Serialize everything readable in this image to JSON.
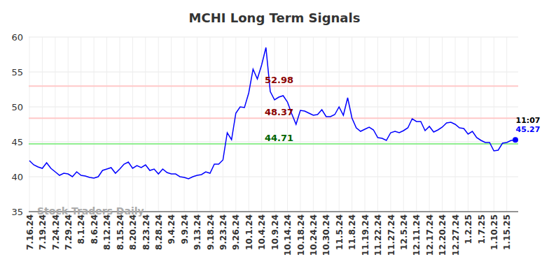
{
  "chart_data": {
    "type": "line",
    "title": "MCHI Long Term Signals",
    "watermark": "Stock Traders Daily",
    "time_label": "11:07",
    "color": "#0000ff",
    "grid": true,
    "ylim": [
      35,
      60
    ],
    "yticks": [
      35,
      40,
      45,
      50,
      55,
      60
    ],
    "levels": [
      {
        "value": 52.98,
        "color": "#8b0000"
      },
      {
        "value": 48.37,
        "color": "#8b0000"
      },
      {
        "value": 44.71,
        "color": "#006400"
      }
    ],
    "categories": [
      "7.16.24",
      null,
      null,
      "7.19.24",
      null,
      null,
      "7.24.24",
      null,
      null,
      "7.29.24",
      null,
      null,
      "8.1.24",
      null,
      null,
      "8.6.24",
      null,
      null,
      "8.12.24",
      null,
      null,
      "8.15.24",
      null,
      null,
      "8.20.24",
      null,
      null,
      "8.23.24",
      null,
      null,
      "8.28.24",
      null,
      null,
      "9.4.24",
      null,
      null,
      "9.9.24",
      null,
      null,
      "9.13.24",
      null,
      null,
      "9.18.24",
      null,
      null,
      "9.23.24",
      null,
      null,
      "9.26.24",
      null,
      null,
      "10.1.24",
      null,
      null,
      "10.4.24",
      null,
      null,
      "10.9.24",
      null,
      null,
      "10.14.24",
      null,
      null,
      "10.18.24",
      null,
      null,
      "10.24.24",
      null,
      null,
      "10.30.24",
      null,
      null,
      "11.5.24",
      null,
      null,
      "11.8.24",
      null,
      null,
      "11.19.24",
      null,
      null,
      "11.22.24",
      null,
      null,
      "11.27.24",
      null,
      null,
      "12.5.24",
      null,
      null,
      "12.11.24",
      null,
      null,
      "12.17.24",
      null,
      null,
      "12.20.24",
      null,
      null,
      "12.27.24",
      null,
      null,
      "1.2.25",
      null,
      null,
      "1.7.25",
      null,
      null,
      "1.10.25",
      null,
      null,
      "1.15.25",
      null,
      null
    ],
    "values": [
      42.3,
      41.7,
      41.4,
      41.2,
      42.0,
      41.2,
      40.7,
      40.2,
      40.5,
      40.4,
      40.0,
      40.7,
      40.2,
      40.1,
      39.9,
      39.8,
      40.0,
      40.9,
      41.1,
      41.3,
      40.5,
      41.1,
      41.8,
      42.1,
      41.2,
      41.6,
      41.3,
      41.7,
      40.9,
      41.1,
      40.4,
      41.1,
      40.6,
      40.4,
      40.4,
      40.0,
      39.9,
      39.7,
      40.0,
      40.2,
      40.3,
      40.7,
      40.5,
      41.8,
      41.8,
      42.4,
      46.3,
      45.3,
      49.1,
      50.0,
      49.9,
      52.0,
      55.4,
      54.0,
      56.0,
      58.5,
      52.2,
      51.0,
      51.4,
      51.6,
      50.7,
      49.0,
      47.5,
      49.5,
      49.4,
      49.1,
      48.8,
      48.9,
      49.6,
      48.6,
      48.6,
      48.9,
      50.0,
      48.8,
      51.3,
      48.4,
      47.0,
      46.5,
      46.8,
      47.1,
      46.7,
      45.6,
      45.5,
      45.2,
      46.3,
      46.5,
      46.3,
      46.6,
      47.0,
      48.3,
      47.9,
      47.9,
      46.6,
      47.2,
      46.4,
      46.7,
      47.1,
      47.7,
      47.8,
      47.5,
      47.0,
      46.9,
      46.1,
      46.5,
      45.6,
      45.2,
      44.9,
      44.9,
      43.7,
      43.8,
      44.8,
      44.9,
      45.2,
      45.27
    ]
  }
}
